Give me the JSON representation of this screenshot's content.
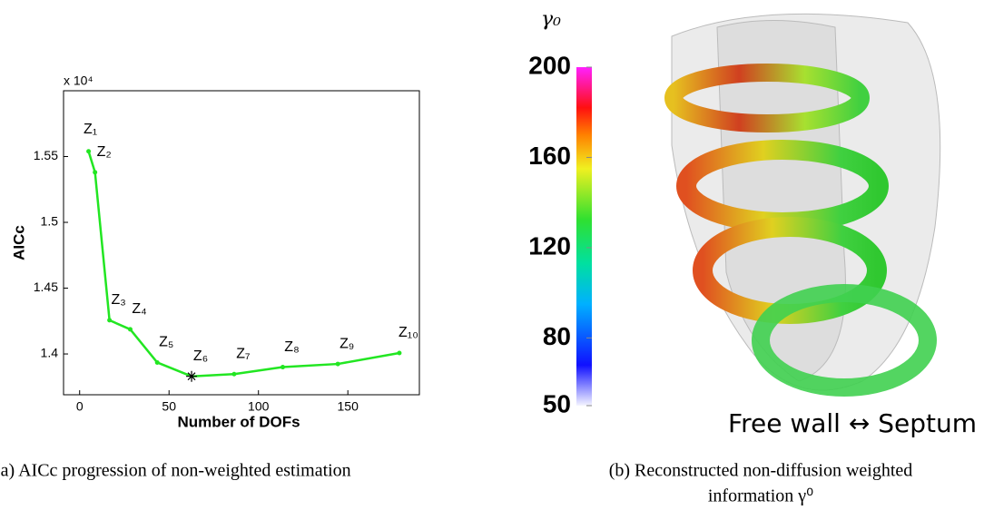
{
  "chart_data": [
    {
      "type": "line",
      "ylabel": "AICc",
      "xlabel": "Number of DOFs",
      "y_multiplier": "x 10⁴",
      "x": [
        5,
        8.6,
        16.7,
        28.3,
        43.4,
        62.6,
        86.4,
        113.6,
        144.4,
        178.8
      ],
      "values": [
        1.554,
        1.538,
        1.4256,
        1.4187,
        1.3935,
        1.383,
        1.3847,
        1.39,
        1.3924,
        1.4007
      ],
      "point_labels": [
        "Z₁",
        "Z₂",
        "Z₃",
        "Z₄",
        "Z₅",
        "Z₆",
        "Z₇",
        "Z₈",
        "Z₉",
        "Z₁₀"
      ],
      "star_point": 5,
      "color": "#22e622",
      "xlim": [
        -9,
        190
      ],
      "ylim": [
        1.369,
        1.6
      ],
      "xticks": [
        0,
        50,
        100,
        150
      ],
      "yticks": [
        1.4,
        1.45,
        1.5,
        1.55
      ],
      "caption": "(a) AICc progression of non-weighted estimation"
    },
    {
      "type": "colorbar",
      "title": "γ₀",
      "lim": [
        50,
        200
      ],
      "ticks": [
        50,
        80,
        120,
        160,
        200
      ],
      "annotation": "Free wall ↔ Septum",
      "caption": [
        "(b) Reconstructed non-diffusion weighted",
        "information γ⁰"
      ]
    }
  ]
}
